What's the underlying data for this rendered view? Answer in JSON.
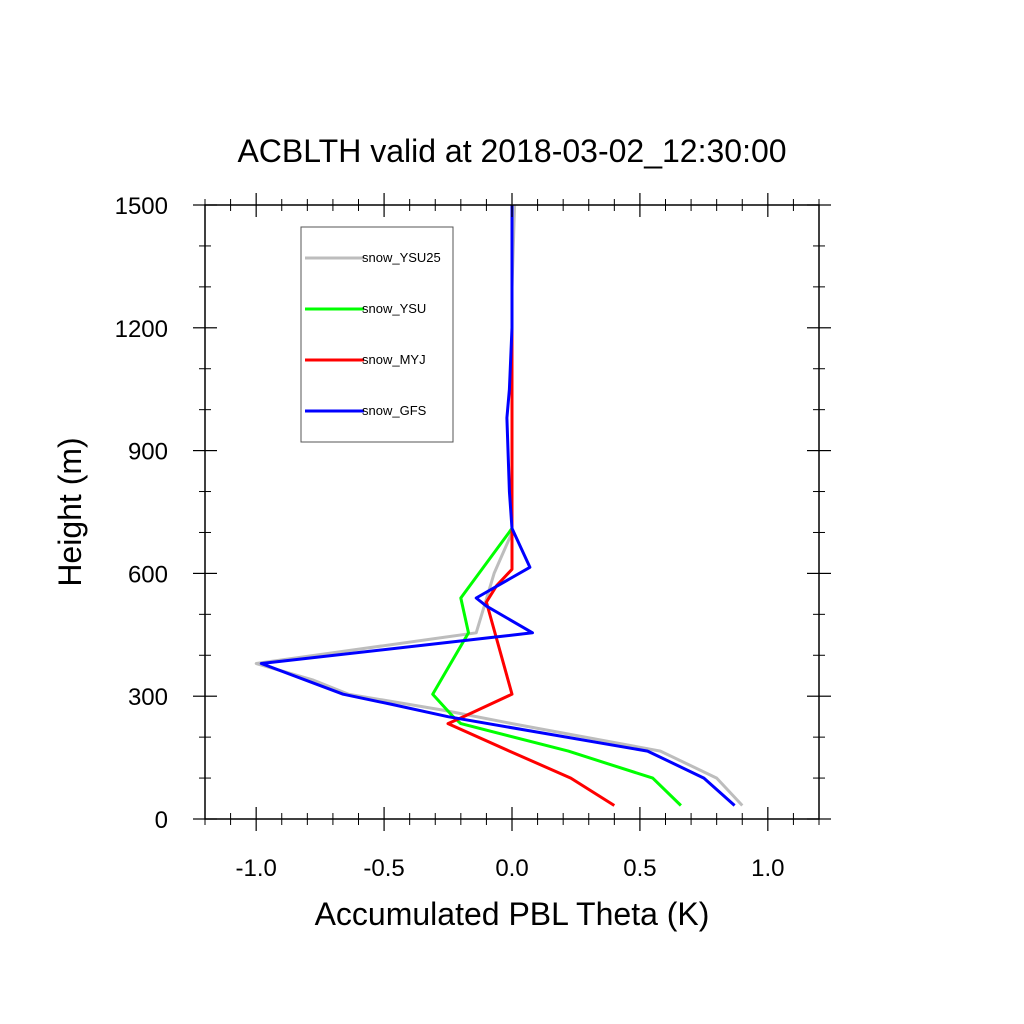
{
  "chart_data": {
    "type": "line",
    "title": "ACBLTH valid at 2018-03-02_12:30:00",
    "xlabel": "Accumulated PBL Theta (K)",
    "ylabel": "Height (m)",
    "xlim": [
      -1.2,
      1.2
    ],
    "ylim": [
      0,
      1500
    ],
    "x_ticks": [
      "-1.0",
      "-0.5",
      "0.0",
      "0.5",
      "1.0"
    ],
    "x_tick_values": [
      -1.0,
      -0.5,
      0.0,
      0.5,
      1.0
    ],
    "y_ticks": [
      "0",
      "300",
      "600",
      "900",
      "1200",
      "1500"
    ],
    "y_tick_values": [
      0,
      300,
      600,
      900,
      1200,
      1500
    ],
    "grid": false,
    "legend_position": "top-left",
    "series": [
      {
        "name": "snow_YSU25",
        "color": "#bdbdbd",
        "points": [
          [
            0.9,
            33
          ],
          [
            0.8,
            100
          ],
          [
            0.58,
            166
          ],
          [
            0.0,
            233
          ],
          [
            -0.27,
            266
          ],
          [
            -0.64,
            305
          ],
          [
            -0.78,
            340
          ],
          [
            -1.0,
            380
          ],
          [
            -0.14,
            455
          ],
          [
            -0.07,
            600
          ],
          [
            0.0,
            700
          ],
          [
            0.0,
            900
          ],
          [
            0.0,
            1100
          ],
          [
            0.0,
            1300
          ],
          [
            0.01,
            1500
          ]
        ]
      },
      {
        "name": "snow_YSU",
        "color": "#00ff00",
        "points": [
          [
            0.66,
            33
          ],
          [
            0.55,
            100
          ],
          [
            0.22,
            166
          ],
          [
            -0.2,
            233
          ],
          [
            -0.23,
            250
          ],
          [
            -0.31,
            305
          ],
          [
            -0.17,
            455
          ],
          [
            -0.2,
            540
          ],
          [
            0.0,
            710
          ],
          [
            0.0,
            900
          ],
          [
            0.0,
            1100
          ],
          [
            0.0,
            1300
          ],
          [
            0.0,
            1500
          ]
        ]
      },
      {
        "name": "snow_MYJ",
        "color": "#ff0000",
        "points": [
          [
            0.4,
            33
          ],
          [
            0.23,
            100
          ],
          [
            -0.01,
            166
          ],
          [
            -0.25,
            233
          ],
          [
            -0.19,
            250
          ],
          [
            0.0,
            305
          ],
          [
            -0.1,
            530
          ],
          [
            -0.06,
            570
          ],
          [
            0.0,
            610
          ],
          [
            0.0,
            710
          ],
          [
            0.0,
            900
          ],
          [
            0.0,
            1100
          ],
          [
            0.0,
            1300
          ],
          [
            0.0,
            1500
          ]
        ]
      },
      {
        "name": "snow_GFS",
        "color": "#0000ff",
        "points": [
          [
            0.87,
            33
          ],
          [
            0.75,
            100
          ],
          [
            0.53,
            166
          ],
          [
            -0.25,
            250
          ],
          [
            -0.47,
            280
          ],
          [
            -0.66,
            305
          ],
          [
            -0.98,
            380
          ],
          [
            0.08,
            455
          ],
          [
            -0.1,
            520
          ],
          [
            -0.14,
            540
          ],
          [
            0.07,
            615
          ],
          [
            0.0,
            710
          ],
          [
            -0.01,
            800
          ],
          [
            -0.02,
            980
          ],
          [
            -0.01,
            1050
          ],
          [
            0.0,
            1200
          ],
          [
            0.0,
            1400
          ],
          [
            0.0,
            1500
          ]
        ]
      }
    ]
  }
}
